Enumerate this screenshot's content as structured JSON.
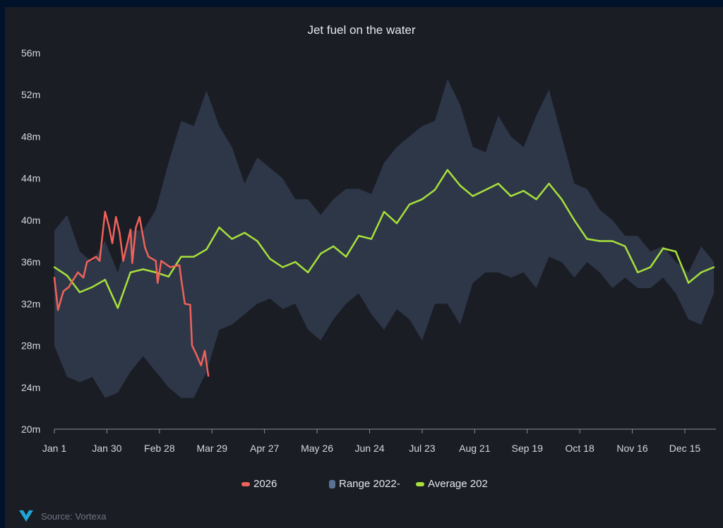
{
  "chart_data": {
    "type": "line",
    "title": "Jet fuel on the water",
    "xlabel": "",
    "ylabel": "",
    "y_ticks": [
      "20m",
      "24m",
      "28m",
      "32m",
      "36m",
      "40m",
      "44m",
      "48m",
      "52m",
      "56m"
    ],
    "ylim": [
      20,
      56
    ],
    "y_unit": "m",
    "x_ticks": [
      "Jan 1",
      "Jan 30",
      "Feb 28",
      "Mar 29",
      "Apr 27",
      "May 26",
      "Jun 24",
      "Jul 23",
      "Aug 21",
      "Sep 19",
      "Oct 18",
      "Nov 16",
      "Dec 15"
    ],
    "grid": false,
    "legend_position": "bottom",
    "series": [
      {
        "name": "2026",
        "kind": "line",
        "color": "#f0625a",
        "x": [
          "Jan 1",
          "Jan 3",
          "Jan 6",
          "Jan 9",
          "Jan 11",
          "Jan 14",
          "Jan 17",
          "Jan 19",
          "Jan 24",
          "Jan 26",
          "Jan 29",
          "Jan 31",
          "Feb 2",
          "Feb 4",
          "Feb 6",
          "Feb 8",
          "Feb 12",
          "Feb 13",
          "Feb 15",
          "Feb 17",
          "Feb 20",
          "Feb 22",
          "Feb 26",
          "Feb 27",
          "Mar 1",
          "Mar 6",
          "Mar 11",
          "Mar 12",
          "Mar 14",
          "Mar 17",
          "Mar 18",
          "Mar 20",
          "Mar 23",
          "Mar 25",
          "Mar 27"
        ],
        "values": [
          34.5,
          31.4,
          33.2,
          33.6,
          34.2,
          35,
          34.5,
          36,
          36.5,
          36.1,
          40.8,
          39.5,
          37.8,
          40.3,
          38.8,
          36.1,
          39.1,
          35.9,
          39.3,
          40.3,
          37.4,
          36.5,
          36.1,
          34,
          36.1,
          35.5,
          35.7,
          34.4,
          32,
          31.9,
          28,
          27.3,
          26.1,
          27.5,
          25.1
        ]
      },
      {
        "name": "Range 2022-",
        "kind": "range",
        "color": "#2d3748",
        "legend_color": "#5a7394",
        "x": [
          "Jan 1",
          "Jan 8",
          "Jan 15",
          "Jan 22",
          "Jan 29",
          "Feb 5",
          "Feb 12",
          "Feb 19",
          "Feb 26",
          "Mar 5",
          "Mar 12",
          "Mar 19",
          "Mar 26",
          "Apr 2",
          "Apr 9",
          "Apr 16",
          "Apr 23",
          "Apr 30",
          "May 7",
          "May 14",
          "May 21",
          "May 28",
          "Jun 4",
          "Jun 11",
          "Jun 18",
          "Jun 25",
          "Jul 2",
          "Jul 9",
          "Jul 16",
          "Jul 23",
          "Jul 30",
          "Aug 6",
          "Aug 13",
          "Aug 20",
          "Aug 27",
          "Sep 3",
          "Sep 10",
          "Sep 17",
          "Sep 24",
          "Oct 1",
          "Oct 8",
          "Oct 15",
          "Oct 22",
          "Oct 29",
          "Nov 5",
          "Nov 12",
          "Nov 19",
          "Nov 26",
          "Dec 3",
          "Dec 10",
          "Dec 17",
          "Dec 24",
          "Dec 31"
        ],
        "high": [
          39,
          40.5,
          37,
          36,
          38,
          35,
          39,
          39,
          41,
          45.5,
          49.5,
          49,
          52.4,
          49,
          47,
          43.5,
          46,
          45,
          44,
          42,
          42,
          40.5,
          42,
          43,
          43,
          42.5,
          45.5,
          47,
          48,
          49,
          49.5,
          53.5,
          51,
          47,
          46.5,
          50,
          48,
          47,
          50,
          52.5,
          48,
          43.5,
          43,
          41,
          40,
          38.5,
          38.5,
          37,
          37.5,
          36,
          35,
          37.5,
          36
        ],
        "low": [
          28,
          25,
          24.5,
          25,
          23,
          23.5,
          25.5,
          27,
          25.5,
          24,
          23,
          23,
          25.5,
          29.5,
          30,
          31,
          32,
          32.5,
          31.5,
          32,
          29.5,
          28.5,
          30.5,
          32,
          33,
          31,
          29.5,
          31.5,
          30.5,
          28.5,
          32,
          32,
          30,
          34,
          35,
          35,
          34.5,
          35,
          33.5,
          36.5,
          36,
          34.5,
          36,
          35,
          33.5,
          34.5,
          33.5,
          33.5,
          34.5,
          33,
          30.5,
          30,
          33
        ]
      },
      {
        "name": "Average 202",
        "kind": "line",
        "color": "#a8e03a",
        "x": [
          "Jan 1",
          "Jan 8",
          "Jan 15",
          "Jan 22",
          "Jan 29",
          "Feb 5",
          "Feb 12",
          "Feb 19",
          "Feb 26",
          "Mar 5",
          "Mar 12",
          "Mar 19",
          "Mar 26",
          "Apr 2",
          "Apr 9",
          "Apr 16",
          "Apr 23",
          "Apr 30",
          "May 7",
          "May 14",
          "May 21",
          "May 28",
          "Jun 4",
          "Jun 11",
          "Jun 18",
          "Jun 25",
          "Jul 2",
          "Jul 9",
          "Jul 16",
          "Jul 23",
          "Jul 30",
          "Aug 6",
          "Aug 13",
          "Aug 20",
          "Aug 27",
          "Sep 3",
          "Sep 10",
          "Sep 17",
          "Sep 24",
          "Oct 1",
          "Oct 8",
          "Oct 15",
          "Oct 22",
          "Oct 29",
          "Nov 5",
          "Nov 12",
          "Nov 19",
          "Nov 26",
          "Dec 3",
          "Dec 10",
          "Dec 17",
          "Dec 24",
          "Dec 31"
        ],
        "values": [
          35.5,
          34.7,
          33.1,
          33.6,
          34.3,
          31.6,
          35,
          35.3,
          35,
          34.6,
          36.5,
          36.5,
          37.2,
          39.3,
          38.2,
          38.8,
          38,
          36.3,
          35.5,
          36,
          35,
          36.8,
          37.5,
          36.5,
          38.5,
          38.2,
          40.8,
          39.7,
          41.5,
          42,
          42.9,
          44.8,
          43.3,
          42.3,
          42.9,
          43.5,
          42.3,
          42.8,
          42,
          43.5,
          42,
          40,
          38.2,
          38,
          38,
          37.5,
          35,
          35.5,
          37.3,
          37,
          34,
          35,
          35.5
        ]
      }
    ]
  },
  "source": {
    "text": "Source: Vortexa",
    "logo_text": "V",
    "logo_color": "#1fa5d6"
  }
}
